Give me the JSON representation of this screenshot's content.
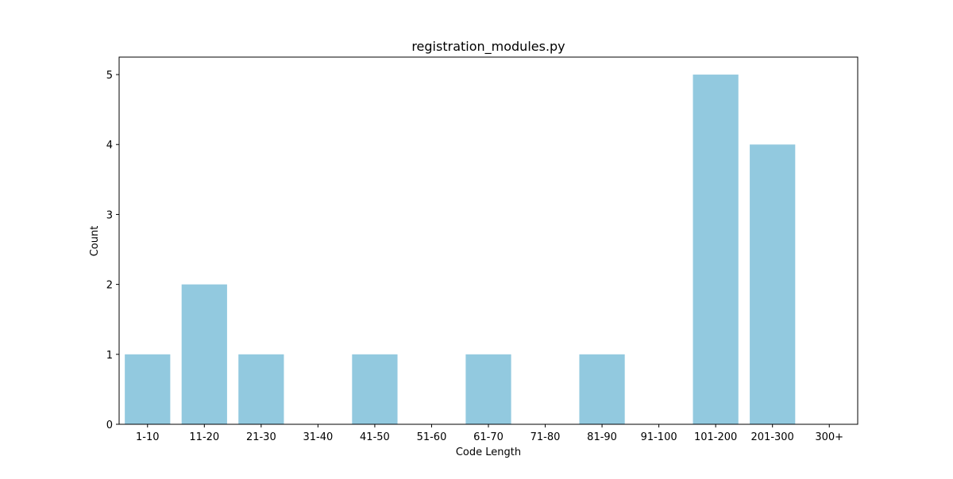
{
  "chart_data": {
    "type": "bar",
    "title": "registration_modules.py",
    "xlabel": "Code Length",
    "ylabel": "Count",
    "categories": [
      "1-10",
      "11-20",
      "21-30",
      "31-40",
      "41-50",
      "51-60",
      "61-70",
      "71-80",
      "81-90",
      "91-100",
      "101-200",
      "201-300",
      "300+"
    ],
    "values": [
      1,
      2,
      1,
      0,
      1,
      0,
      1,
      0,
      1,
      0,
      5,
      4,
      0
    ],
    "ylim": [
      0,
      5.25
    ],
    "yticks": [
      "0",
      "1",
      "2",
      "3",
      "4",
      "5"
    ],
    "bar_color": "#92c9df",
    "grid": false
  }
}
